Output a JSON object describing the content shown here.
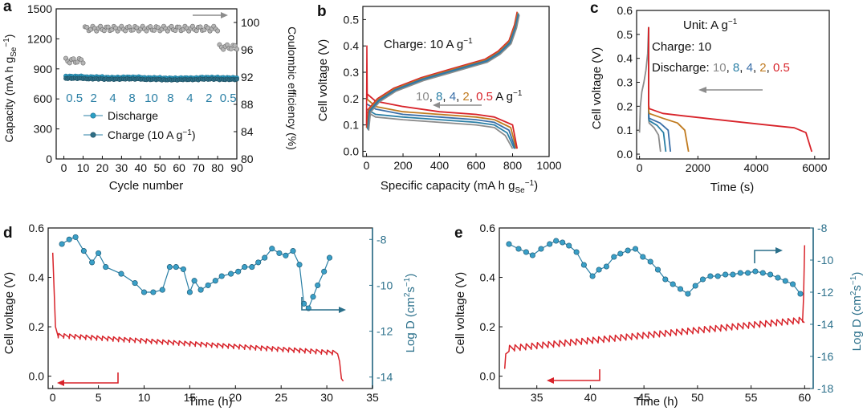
{
  "figure": {
    "panel_a": {
      "letter": "a",
      "ylabel_main": "Capacity (mA h g",
      "ylabel_sub": "Se",
      "ylabel_sup": "−1",
      "ylabel_close": ")",
      "y2label": "Coulombic efficiency (%)",
      "xlabel": "Cycle number",
      "rate_labels": [
        "0.5",
        "2",
        "4",
        "8",
        "10",
        "8",
        "4",
        "2",
        "0.5"
      ],
      "legend_discharge": "Discharge",
      "legend_charge_main": "Charge (10 A g",
      "legend_charge_sup": "−1",
      "legend_charge_close": ")"
    },
    "panel_b": {
      "letter": "b",
      "ylabel": "Cell voltage (V)",
      "xlabel_main": "Specific capacity (mA h g",
      "xlabel_sub": "Se",
      "xlabel_sup": "−1",
      "xlabel_close": ")",
      "charge_label": "Charge: 10 A g",
      "charge_sup": "−1",
      "rates": [
        "10",
        "8",
        "4",
        "2",
        "0.5"
      ],
      "unit": "A g",
      "unit_sup": "−1"
    },
    "panel_c": {
      "letter": "c",
      "ylabel": "Cell voltage (V)",
      "xlabel": "Time (s)",
      "unit_label": "Unit: A g",
      "unit_sup": "−1",
      "charge_label": "Charge: 10",
      "discharge_label": "Discharge:",
      "rates": [
        "10",
        "8",
        "4",
        "2",
        "0.5"
      ]
    },
    "panel_d": {
      "letter": "d",
      "ylabel": "Cell voltage (V)",
      "y2label": "Log D (cm",
      "y2label_sup1": "2",
      "y2label_mid": "s",
      "y2label_sup2": "−1",
      "y2label_close": ")",
      "xlabel": "Time (h)"
    },
    "panel_e": {
      "letter": "e",
      "ylabel": "Cell voltage (V)",
      "y2label": "Log D (cm",
      "y2label_sup1": "2",
      "y2label_mid": "s",
      "y2label_sup2": "−1",
      "y2label_close": ")",
      "xlabel": "Time (h)"
    }
  },
  "colors": {
    "red": "#d8232a",
    "teal": "#2a7fa5",
    "gray": "#8c8c8c",
    "orange": "#c07a1e",
    "axis_right": "#2a6f8a"
  },
  "chart_data": [
    {
      "id": "a",
      "type": "scatter",
      "title": "",
      "xlabel": "Cycle number",
      "ylabel": "Capacity (mA h gSe−1)",
      "y2label": "Coulombic efficiency (%)",
      "xlim": [
        -4,
        90
      ],
      "ylim": [
        0,
        1500
      ],
      "y2lim": [
        80,
        102
      ],
      "xticks": [
        0,
        10,
        20,
        30,
        40,
        50,
        60,
        70,
        80,
        90
      ],
      "yticks": [
        0,
        300,
        600,
        900,
        1200,
        1500
      ],
      "y2ticks": [
        80,
        84,
        88,
        92,
        96,
        100
      ],
      "series": [
        {
          "name": "Discharge",
          "axis": "left",
          "color": "#2a7fa5",
          "x_start": 1,
          "x_end": 90,
          "values": [
            826,
            820,
            815,
            818,
            812,
            808,
            810,
            815,
            812,
            818
          ]
        },
        {
          "name": "Charge (10 A g−1)",
          "axis": "left",
          "color": "#2a7fa5",
          "x_start": 1,
          "x_end": 90,
          "values": [
            805,
            800,
            797,
            799,
            794,
            791,
            793,
            797,
            794,
            799
          ]
        },
        {
          "name": "Coulombic efficiency",
          "axis": "right",
          "color": "#8c8c8c",
          "segments": [
            {
              "x": [
                1,
                10
              ],
              "value": 94.4
            },
            {
              "x": [
                11,
                80
              ],
              "value": 99.1
            },
            {
              "x": [
                81,
                90
              ],
              "value": 96.4
            }
          ]
        }
      ],
      "rate_segments": [
        "0.5",
        "2",
        "4",
        "8",
        "10",
        "8",
        "4",
        "2",
        "0.5"
      ]
    },
    {
      "id": "b",
      "type": "line",
      "xlabel": "Specific capacity (mA h gSe−1)",
      "ylabel": "Cell voltage (V)",
      "xlim": [
        -20,
        1000
      ],
      "ylim": [
        -0.02,
        0.55
      ],
      "xticks": [
        0,
        200,
        400,
        600,
        800,
        1000
      ],
      "yticks": [
        0.0,
        0.1,
        0.2,
        0.3,
        0.4,
        0.5
      ],
      "charge_curve": {
        "rate": "10",
        "capacity": [
          0,
          10,
          60,
          150,
          300,
          450,
          550,
          650,
          720,
          780,
          810,
          825
        ],
        "voltage": [
          0.09,
          0.16,
          0.2,
          0.24,
          0.28,
          0.31,
          0.33,
          0.35,
          0.38,
          0.42,
          0.48,
          0.53
        ]
      },
      "discharge_series": [
        {
          "rate": "10",
          "color": "#8c8c8c",
          "capacity": [
            0,
            50,
            200,
            400,
            600,
            700,
            760,
            800
          ],
          "voltage": [
            0.15,
            0.13,
            0.12,
            0.11,
            0.1,
            0.09,
            0.06,
            0.01
          ]
        },
        {
          "rate": "8",
          "color": "#2a7fa5",
          "capacity": [
            0,
            50,
            200,
            400,
            600,
            700,
            770,
            810
          ],
          "voltage": [
            0.16,
            0.14,
            0.13,
            0.12,
            0.11,
            0.1,
            0.07,
            0.01
          ]
        },
        {
          "rate": "4",
          "color": "#3a6fa8",
          "capacity": [
            0,
            50,
            200,
            400,
            600,
            700,
            780,
            815
          ],
          "voltage": [
            0.18,
            0.16,
            0.14,
            0.13,
            0.12,
            0.11,
            0.08,
            0.01
          ]
        },
        {
          "rate": "2",
          "color": "#c07a1e",
          "capacity": [
            0,
            50,
            200,
            400,
            600,
            700,
            790,
            820
          ],
          "voltage": [
            0.2,
            0.17,
            0.15,
            0.14,
            0.13,
            0.12,
            0.09,
            0.01
          ]
        },
        {
          "rate": "0.5",
          "color": "#d8232a",
          "capacity": [
            0,
            50,
            200,
            400,
            600,
            700,
            800,
            825
          ],
          "voltage": [
            0.22,
            0.19,
            0.17,
            0.15,
            0.14,
            0.13,
            0.1,
            0.01
          ]
        }
      ]
    },
    {
      "id": "c",
      "type": "line",
      "xlabel": "Time (s)",
      "ylabel": "Cell voltage (V)",
      "xlim": [
        -100,
        6500
      ],
      "ylim": [
        -0.02,
        0.6
      ],
      "xticks": [
        0,
        2000,
        4000,
        6000
      ],
      "yticks": [
        0.0,
        0.1,
        0.2,
        0.3,
        0.4,
        0.5,
        0.6
      ],
      "charge_curve": {
        "rate": "10",
        "time": [
          0,
          30,
          80,
          150,
          220,
          280,
          310
        ],
        "voltage": [
          0.09,
          0.2,
          0.26,
          0.3,
          0.35,
          0.42,
          0.53
        ]
      },
      "discharge_series": [
        {
          "rate": "10",
          "color": "#8c8c8c",
          "time": [
            310,
            330,
            500,
            650,
            720
          ],
          "voltage": [
            0.15,
            0.13,
            0.11,
            0.08,
            0.01
          ]
        },
        {
          "rate": "8",
          "color": "#2a7fa5",
          "time": [
            310,
            330,
            600,
            820,
            900
          ],
          "voltage": [
            0.16,
            0.14,
            0.12,
            0.09,
            0.01
          ]
        },
        {
          "rate": "4",
          "color": "#3a6fa8",
          "time": [
            310,
            330,
            700,
            980,
            1060
          ],
          "voltage": [
            0.18,
            0.15,
            0.13,
            0.1,
            0.01
          ]
        },
        {
          "rate": "2",
          "color": "#c07a1e",
          "time": [
            310,
            330,
            800,
            1300,
            1550,
            1680
          ],
          "voltage": [
            0.19,
            0.17,
            0.15,
            0.13,
            0.1,
            0.01
          ]
        },
        {
          "rate": "0.5",
          "color": "#d8232a",
          "time": [
            310,
            330,
            800,
            1500,
            3000,
            4500,
            5300,
            5700,
            5900
          ],
          "voltage": [
            0.21,
            0.19,
            0.17,
            0.16,
            0.14,
            0.12,
            0.11,
            0.09,
            0.01
          ]
        }
      ]
    },
    {
      "id": "d",
      "type": "line",
      "xlabel": "Time (h)",
      "ylabel": "Cell voltage (V)",
      "y2label": "Log D (cm2s−1)",
      "xlim": [
        -0.5,
        35
      ],
      "ylim": [
        -0.05,
        0.6
      ],
      "y2lim": [
        -14.5,
        -7.5
      ],
      "xticks": [
        0,
        5,
        10,
        15,
        20,
        25,
        30,
        35
      ],
      "yticks": [
        0.0,
        0.2,
        0.4,
        0.6
      ],
      "y2ticks": [
        -14,
        -12,
        -10,
        -8
      ],
      "voltage": {
        "color": "#d8232a",
        "initial": [
          [
            0,
            0.5
          ],
          [
            0.3,
            0.2
          ],
          [
            0.6,
            0.16
          ]
        ],
        "pulse_start": 0.6,
        "pulse_end": 31.2,
        "pulse_period": 0.6,
        "base_start": 0.155,
        "base_end": 0.085,
        "pulse_height": 0.018,
        "tail": [
          [
            31.4,
            0.06
          ],
          [
            31.6,
            -0.01
          ],
          [
            31.8,
            -0.02
          ]
        ]
      },
      "log_d": {
        "color": "#2a7fa5",
        "x": [
          1.0,
          1.8,
          2.5,
          3.4,
          4.3,
          5.0,
          5.8,
          7.5,
          9.0,
          10.0,
          11.0,
          12.0,
          12.8,
          13.5,
          14.3,
          15.0,
          15.5,
          16.2,
          17.0,
          17.8,
          18.5,
          19.5,
          20.3,
          21.0,
          21.8,
          22.5,
          23.2,
          24.0,
          24.8,
          25.5,
          26.3,
          27.0,
          27.5,
          28.0,
          28.5,
          29.0,
          29.7,
          30.3
        ],
        "y": [
          -8.2,
          -8.0,
          -7.9,
          -8.5,
          -9.0,
          -8.6,
          -9.2,
          -9.5,
          -9.9,
          -10.3,
          -10.3,
          -10.2,
          -9.2,
          -9.2,
          -9.3,
          -10.3,
          -9.8,
          -10.2,
          -10.0,
          -9.8,
          -9.6,
          -9.5,
          -9.4,
          -9.2,
          -9.2,
          -9.0,
          -8.8,
          -8.4,
          -8.6,
          -8.7,
          -8.5,
          -9.1,
          -10.8,
          -11.0,
          -10.5,
          -10.0,
          -9.4,
          -8.8
        ]
      }
    },
    {
      "id": "e",
      "type": "line",
      "xlabel": "Time (h)",
      "ylabel": "Cell voltage (V)",
      "y2label": "Log D (cm2s−1)",
      "xlim": [
        31.5,
        60.8
      ],
      "ylim": [
        -0.05,
        0.6
      ],
      "y2lim": [
        -18,
        -8
      ],
      "xticks": [
        35,
        40,
        45,
        50,
        55,
        60
      ],
      "yticks": [
        0.0,
        0.2,
        0.4,
        0.6
      ],
      "y2ticks": [
        -18,
        -16,
        -14,
        -12,
        -10,
        -8
      ],
      "voltage": {
        "color": "#d8232a",
        "initial": [
          [
            32.0,
            0.03
          ],
          [
            32.1,
            0.09
          ],
          [
            32.4,
            0.1
          ]
        ],
        "pulse_start": 32.4,
        "pulse_end": 59.7,
        "pulse_period": 0.52,
        "base_start": 0.1,
        "base_end": 0.215,
        "pulse_height": 0.025,
        "tail": [
          [
            59.8,
            0.22
          ],
          [
            59.9,
            0.32
          ],
          [
            60.0,
            0.53
          ]
        ]
      },
      "log_d": {
        "color": "#2a7fa5",
        "x": [
          32.4,
          33.3,
          34.0,
          34.6,
          35.4,
          36.2,
          36.8,
          37.4,
          38.0,
          38.7,
          39.4,
          40.2,
          40.8,
          41.5,
          42.2,
          42.8,
          43.5,
          44.2,
          44.9,
          45.6,
          46.3,
          47.0,
          47.7,
          48.4,
          49.1,
          49.8,
          50.5,
          51.2,
          51.9,
          52.6,
          53.3,
          54.0,
          54.7,
          55.4,
          56.1,
          56.8,
          57.5,
          58.2,
          58.9,
          59.6
        ],
        "y": [
          -9.0,
          -9.3,
          -9.5,
          -9.7,
          -9.3,
          -9.0,
          -8.8,
          -8.9,
          -9.1,
          -9.5,
          -10.3,
          -11.0,
          -10.6,
          -10.4,
          -9.8,
          -9.6,
          -9.4,
          -9.3,
          -9.8,
          -10.1,
          -10.6,
          -11.2,
          -11.5,
          -11.8,
          -12.1,
          -11.6,
          -11.2,
          -11.0,
          -11.0,
          -10.9,
          -10.9,
          -10.8,
          -10.8,
          -10.7,
          -10.8,
          -10.9,
          -11.1,
          -11.3,
          -11.5,
          -12.1
        ]
      }
    }
  ]
}
